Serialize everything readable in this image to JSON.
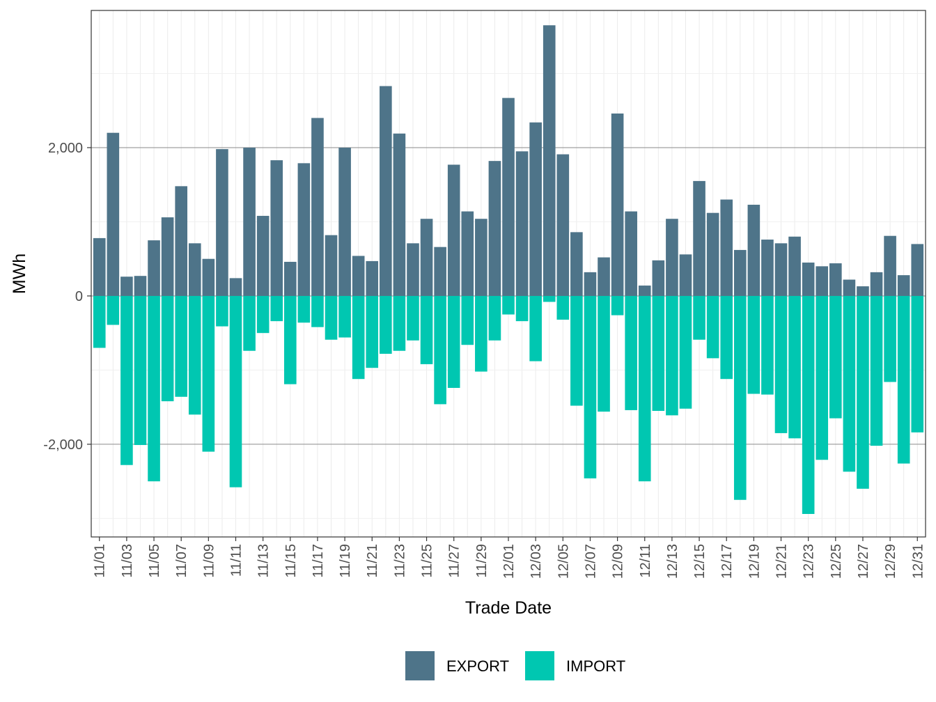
{
  "chart_data": {
    "type": "bar",
    "stacked": "diverging",
    "xlabel": "Trade Date",
    "ylabel": "MWh",
    "ylim": [
      -3250,
      3850
    ],
    "y_ticks": [
      -2000,
      0,
      2000
    ],
    "y_tick_labels": [
      "-2,000",
      "0",
      "2,000"
    ],
    "grid": true,
    "legend_position": "bottom",
    "categories": [
      "11/01",
      "11/02",
      "11/03",
      "11/04",
      "11/05",
      "11/06",
      "11/07",
      "11/08",
      "11/09",
      "11/10",
      "11/11",
      "11/12",
      "11/13",
      "11/14",
      "11/15",
      "11/16",
      "11/17",
      "11/18",
      "11/19",
      "11/20",
      "11/21",
      "11/22",
      "11/23",
      "11/24",
      "11/25",
      "11/26",
      "11/27",
      "11/28",
      "11/29",
      "11/30",
      "12/01",
      "12/02",
      "12/03",
      "12/04",
      "12/05",
      "12/06",
      "12/07",
      "12/08",
      "12/09",
      "12/10",
      "12/11",
      "12/12",
      "12/13",
      "12/14",
      "12/15",
      "12/16",
      "12/17",
      "12/18",
      "12/19",
      "12/20",
      "12/21",
      "12/22",
      "12/23",
      "12/24",
      "12/25",
      "12/26",
      "12/27",
      "12/28",
      "12/29",
      "12/30",
      "12/31"
    ],
    "x_tick_labels": [
      "11/01",
      "11/03",
      "11/05",
      "11/07",
      "11/09",
      "11/11",
      "11/13",
      "11/15",
      "11/17",
      "11/19",
      "11/21",
      "11/23",
      "11/25",
      "11/27",
      "11/29",
      "12/01",
      "12/03",
      "12/05",
      "12/07",
      "12/09",
      "12/11",
      "12/13",
      "12/15",
      "12/17",
      "12/19",
      "12/21",
      "12/23",
      "12/25",
      "12/27",
      "12/29",
      "12/31"
    ],
    "series": [
      {
        "name": "EXPORT",
        "color": "#4e7489",
        "values": [
          780,
          2200,
          260,
          270,
          750,
          1060,
          1480,
          710,
          500,
          1980,
          240,
          2000,
          1080,
          1830,
          460,
          1790,
          2400,
          820,
          2000,
          540,
          470,
          2830,
          2190,
          710,
          1040,
          660,
          1770,
          1140,
          1040,
          1820,
          2670,
          1950,
          2340,
          3650,
          1910,
          860,
          320,
          520,
          2460,
          1140,
          140,
          480,
          1040,
          560,
          1550,
          1120,
          1300,
          620,
          1230,
          760,
          710,
          800,
          450,
          400,
          440,
          220,
          130,
          320,
          810,
          280,
          700
        ]
      },
      {
        "name": "IMPORT",
        "color": "#00c7b1",
        "values": [
          -700,
          -390,
          -2280,
          -2010,
          -2500,
          -1420,
          -1360,
          -1600,
          -2100,
          -410,
          -2580,
          -740,
          -500,
          -340,
          -1190,
          -360,
          -420,
          -590,
          -560,
          -1120,
          -970,
          -780,
          -740,
          -600,
          -920,
          -1460,
          -1240,
          -660,
          -1020,
          -600,
          -250,
          -340,
          -880,
          -80,
          -320,
          -1480,
          -2460,
          -1560,
          -260,
          -1540,
          -2500,
          -1550,
          -1610,
          -1520,
          -590,
          -840,
          -1120,
          -2750,
          -1320,
          -1330,
          -1850,
          -1920,
          -2940,
          -2210,
          -1650,
          -2370,
          -2600,
          -2020,
          -1160,
          -2260,
          -1840
        ]
      }
    ]
  }
}
